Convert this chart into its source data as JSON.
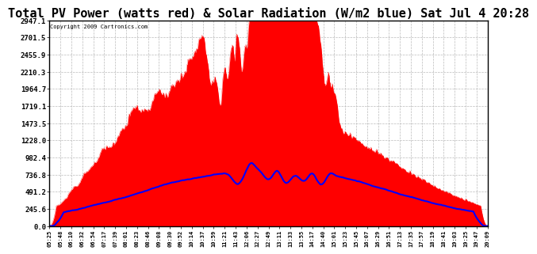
{
  "title": "Total PV Power (watts red) & Solar Radiation (W/m2 blue) Sat Jul 4 20:28",
  "copyright": "Copyright 2009 Cartronics.com",
  "title_fontsize": 11,
  "background_color": "#ffffff",
  "plot_bg_color": "#ffffff",
  "grid_color": "#bbbbbb",
  "yticks": [
    0.0,
    245.6,
    491.2,
    736.8,
    982.4,
    1228.0,
    1473.5,
    1719.1,
    1964.7,
    2210.3,
    2455.9,
    2701.5,
    2947.1
  ],
  "ymax": 2947.1,
  "xtick_labels": [
    "05:25",
    "05:48",
    "06:10",
    "06:32",
    "06:54",
    "07:17",
    "07:39",
    "08:01",
    "08:23",
    "08:46",
    "09:08",
    "09:30",
    "09:52",
    "10:14",
    "10:37",
    "10:59",
    "11:21",
    "11:43",
    "12:06",
    "12:27",
    "12:49",
    "13:11",
    "13:33",
    "13:55",
    "14:17",
    "14:40",
    "15:01",
    "15:23",
    "15:45",
    "16:07",
    "16:29",
    "16:51",
    "17:13",
    "17:35",
    "17:57",
    "18:19",
    "18:41",
    "19:03",
    "19:25",
    "19:47",
    "20:09"
  ],
  "pv_color": "#ff0000",
  "solar_color": "#0000ff",
  "border_color": "#000000"
}
